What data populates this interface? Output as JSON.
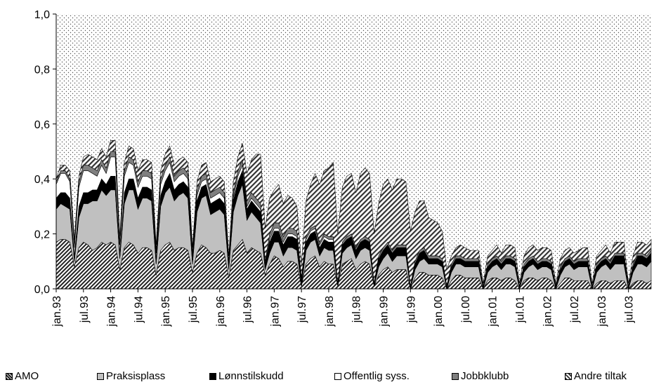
{
  "chart_data": {
    "type": "area",
    "stacked": true,
    "ylim": [
      0,
      1.0
    ],
    "y_ticks": [
      "0,0",
      "0,2",
      "0,4",
      "0,6",
      "0,8",
      "1,0"
    ],
    "y_tick_values": [
      0,
      0.2,
      0.4,
      0.6,
      0.8,
      1.0
    ],
    "x_tick_labels": [
      "jan.93",
      "jul.93",
      "jan.94",
      "jul.94",
      "jan.95",
      "jul.95",
      "jan.96",
      "jul.96",
      "jan.97",
      "jul.97",
      "jan.98",
      "jul.98",
      "jan.99",
      "jul.99",
      "jan.00",
      "jul.00",
      "jan.01",
      "jul.01",
      "jan.02",
      "jul.02",
      "jan.03",
      "jul.03"
    ],
    "x_start": "jan.93",
    "n_months": 132,
    "residual_fill": "dotted",
    "series": [
      {
        "name": "AMO",
        "pattern": "hatch-dense",
        "values": [
          0.17,
          0.18,
          0.18,
          0.17,
          0.08,
          0.15,
          0.17,
          0.16,
          0.14,
          0.15,
          0.17,
          0.16,
          0.17,
          0.16,
          0.07,
          0.15,
          0.17,
          0.16,
          0.13,
          0.15,
          0.15,
          0.14,
          0.05,
          0.14,
          0.16,
          0.17,
          0.14,
          0.15,
          0.15,
          0.14,
          0.06,
          0.13,
          0.16,
          0.15,
          0.13,
          0.13,
          0.14,
          0.13,
          0.04,
          0.14,
          0.16,
          0.18,
          0.13,
          0.15,
          0.14,
          0.13,
          0.05,
          0.09,
          0.12,
          0.11,
          0.08,
          0.1,
          0.1,
          0.09,
          0.01,
          0.09,
          0.11,
          0.12,
          0.08,
          0.1,
          0.09,
          0.09,
          0.01,
          0.09,
          0.1,
          0.11,
          0.07,
          0.09,
          0.1,
          0.09,
          0.01,
          0.05,
          0.07,
          0.08,
          0.06,
          0.07,
          0.07,
          0.07,
          0.0,
          0.04,
          0.06,
          0.06,
          0.05,
          0.05,
          0.05,
          0.04,
          0.0,
          0.03,
          0.05,
          0.05,
          0.04,
          0.04,
          0.04,
          0.04,
          0.0,
          0.03,
          0.04,
          0.04,
          0.03,
          0.04,
          0.04,
          0.03,
          0.0,
          0.03,
          0.04,
          0.04,
          0.03,
          0.04,
          0.04,
          0.03,
          0.0,
          0.02,
          0.04,
          0.04,
          0.03,
          0.03,
          0.03,
          0.03,
          0.0,
          0.02,
          0.03,
          0.03,
          0.02,
          0.03,
          0.03,
          0.03,
          0.0,
          0.02,
          0.03,
          0.03,
          0.02,
          0.03,
          0.03,
          0.03
        ]
      },
      {
        "name": "Praksisplass",
        "pattern": "light-gray",
        "values": [
          0.12,
          0.13,
          0.12,
          0.12,
          0.02,
          0.11,
          0.14,
          0.15,
          0.18,
          0.17,
          0.19,
          0.18,
          0.19,
          0.2,
          0.04,
          0.16,
          0.19,
          0.2,
          0.16,
          0.18,
          0.18,
          0.18,
          0.04,
          0.16,
          0.19,
          0.2,
          0.18,
          0.19,
          0.2,
          0.19,
          0.03,
          0.15,
          0.17,
          0.19,
          0.14,
          0.15,
          0.15,
          0.14,
          0.03,
          0.14,
          0.18,
          0.2,
          0.12,
          0.13,
          0.12,
          0.11,
          0.02,
          0.04,
          0.05,
          0.06,
          0.04,
          0.05,
          0.05,
          0.05,
          0.0,
          0.05,
          0.06,
          0.06,
          0.04,
          0.05,
          0.05,
          0.05,
          0.0,
          0.04,
          0.05,
          0.05,
          0.04,
          0.05,
          0.05,
          0.05,
          0.0,
          0.03,
          0.04,
          0.05,
          0.04,
          0.05,
          0.05,
          0.05,
          0.0,
          0.03,
          0.04,
          0.05,
          0.04,
          0.04,
          0.04,
          0.04,
          0.0,
          0.03,
          0.04,
          0.04,
          0.04,
          0.04,
          0.04,
          0.04,
          0.0,
          0.03,
          0.04,
          0.05,
          0.04,
          0.05,
          0.05,
          0.05,
          0.0,
          0.03,
          0.04,
          0.05,
          0.04,
          0.04,
          0.04,
          0.04,
          0.0,
          0.03,
          0.04,
          0.05,
          0.04,
          0.05,
          0.05,
          0.05,
          0.0,
          0.04,
          0.05,
          0.06,
          0.05,
          0.06,
          0.06,
          0.06,
          0.0,
          0.04,
          0.06,
          0.06,
          0.06,
          0.07,
          0.08,
          0.08
        ]
      },
      {
        "name": "Lønnstilskudd",
        "pattern": "black",
        "values": [
          0.04,
          0.04,
          0.05,
          0.04,
          0.02,
          0.04,
          0.04,
          0.04,
          0.04,
          0.04,
          0.04,
          0.04,
          0.05,
          0.05,
          0.02,
          0.04,
          0.04,
          0.04,
          0.04,
          0.04,
          0.04,
          0.04,
          0.02,
          0.04,
          0.04,
          0.05,
          0.04,
          0.04,
          0.04,
          0.04,
          0.02,
          0.04,
          0.04,
          0.04,
          0.04,
          0.04,
          0.04,
          0.04,
          0.02,
          0.04,
          0.05,
          0.05,
          0.04,
          0.04,
          0.04,
          0.04,
          0.02,
          0.04,
          0.04,
          0.04,
          0.04,
          0.04,
          0.04,
          0.04,
          0.02,
          0.03,
          0.03,
          0.03,
          0.03,
          0.03,
          0.03,
          0.03,
          0.01,
          0.03,
          0.03,
          0.03,
          0.03,
          0.03,
          0.03,
          0.03,
          0.01,
          0.03,
          0.03,
          0.03,
          0.03,
          0.03,
          0.03,
          0.03,
          0.01,
          0.02,
          0.03,
          0.03,
          0.02,
          0.02,
          0.02,
          0.02,
          0.01,
          0.02,
          0.02,
          0.02,
          0.02,
          0.02,
          0.02,
          0.02,
          0.01,
          0.02,
          0.02,
          0.02,
          0.02,
          0.02,
          0.02,
          0.02,
          0.01,
          0.02,
          0.02,
          0.02,
          0.02,
          0.02,
          0.02,
          0.02,
          0.01,
          0.02,
          0.02,
          0.02,
          0.02,
          0.02,
          0.02,
          0.02,
          0.01,
          0.02,
          0.02,
          0.02,
          0.02,
          0.03,
          0.03,
          0.03,
          0.01,
          0.02,
          0.03,
          0.03,
          0.03,
          0.03,
          0.03,
          0.03
        ]
      },
      {
        "name": "Offentlig syss.",
        "pattern": "white",
        "values": [
          0.05,
          0.07,
          0.07,
          0.06,
          0.03,
          0.07,
          0.08,
          0.08,
          0.06,
          0.05,
          0.05,
          0.04,
          0.07,
          0.07,
          0.03,
          0.06,
          0.06,
          0.05,
          0.04,
          0.04,
          0.04,
          0.04,
          0.02,
          0.04,
          0.04,
          0.04,
          0.03,
          0.03,
          0.03,
          0.03,
          0.01,
          0.02,
          0.02,
          0.02,
          0.02,
          0.02,
          0.02,
          0.02,
          0.0,
          0.01,
          0.02,
          0.02,
          0.01,
          0.01,
          0.01,
          0.01,
          0.0,
          0.01,
          0.01,
          0.01,
          0.01,
          0.01,
          0.01,
          0.01,
          0.0,
          0.01,
          0.01,
          0.01,
          0.01,
          0.01,
          0.01,
          0.01,
          0.0,
          0.0,
          0.0,
          0.0,
          0.0,
          0.0,
          0.0,
          0.0,
          0.0,
          0.0,
          0.0,
          0.0,
          0.0,
          0.0,
          0.0,
          0.0,
          0.0,
          0.0,
          0.0,
          0.0,
          0.0,
          0.0,
          0.0,
          0.0,
          0.0,
          0.0,
          0.0,
          0.0,
          0.0,
          0.0,
          0.0,
          0.0,
          0.0,
          0.0,
          0.0,
          0.0,
          0.0,
          0.0,
          0.0,
          0.0,
          0.0,
          0.0,
          0.0,
          0.0,
          0.0,
          0.0,
          0.0,
          0.0,
          0.0,
          0.0,
          0.0,
          0.0,
          0.0,
          0.0,
          0.0,
          0.0,
          0.0,
          0.0,
          0.0,
          0.0,
          0.0,
          0.0,
          0.0,
          0.0,
          0.0,
          0.0,
          0.0,
          0.0,
          0.0,
          0.0,
          0.0,
          0.0
        ]
      },
      {
        "name": "Jobbklubb",
        "pattern": "dark-gray",
        "values": [
          0.01,
          0.01,
          0.01,
          0.01,
          0.01,
          0.02,
          0.02,
          0.02,
          0.02,
          0.02,
          0.02,
          0.02,
          0.02,
          0.02,
          0.01,
          0.02,
          0.02,
          0.02,
          0.02,
          0.02,
          0.02,
          0.02,
          0.01,
          0.02,
          0.02,
          0.02,
          0.02,
          0.02,
          0.02,
          0.02,
          0.01,
          0.02,
          0.02,
          0.02,
          0.02,
          0.02,
          0.02,
          0.02,
          0.01,
          0.02,
          0.02,
          0.02,
          0.02,
          0.02,
          0.02,
          0.02,
          0.01,
          0.02,
          0.02,
          0.02,
          0.02,
          0.02,
          0.02,
          0.02,
          0.01,
          0.01,
          0.01,
          0.01,
          0.01,
          0.01,
          0.01,
          0.01,
          0.0,
          0.01,
          0.01,
          0.01,
          0.01,
          0.01,
          0.01,
          0.01,
          0.0,
          0.01,
          0.01,
          0.01,
          0.01,
          0.01,
          0.01,
          0.01,
          0.0,
          0.01,
          0.01,
          0.01,
          0.01,
          0.01,
          0.01,
          0.01,
          0.0,
          0.01,
          0.01,
          0.01,
          0.01,
          0.01,
          0.01,
          0.01,
          0.0,
          0.01,
          0.01,
          0.01,
          0.01,
          0.01,
          0.01,
          0.01,
          0.0,
          0.01,
          0.01,
          0.01,
          0.01,
          0.01,
          0.01,
          0.01,
          0.0,
          0.01,
          0.01,
          0.01,
          0.01,
          0.01,
          0.01,
          0.01,
          0.0,
          0.01,
          0.01,
          0.01,
          0.01,
          0.01,
          0.01,
          0.01,
          0.0,
          0.01,
          0.01,
          0.01,
          0.01,
          0.01,
          0.01,
          0.01
        ]
      },
      {
        "name": "Andre tiltak",
        "pattern": "hatch-sparse",
        "values": [
          0.01,
          0.02,
          0.02,
          0.03,
          0.02,
          0.02,
          0.03,
          0.04,
          0.04,
          0.04,
          0.04,
          0.04,
          0.04,
          0.04,
          0.02,
          0.03,
          0.04,
          0.04,
          0.04,
          0.04,
          0.04,
          0.04,
          0.02,
          0.03,
          0.04,
          0.04,
          0.04,
          0.04,
          0.04,
          0.04,
          0.02,
          0.03,
          0.04,
          0.04,
          0.04,
          0.04,
          0.04,
          0.04,
          0.02,
          0.04,
          0.05,
          0.06,
          0.1,
          0.12,
          0.16,
          0.18,
          0.12,
          0.13,
          0.12,
          0.14,
          0.12,
          0.12,
          0.11,
          0.09,
          0.05,
          0.13,
          0.16,
          0.19,
          0.21,
          0.23,
          0.25,
          0.27,
          0.18,
          0.2,
          0.22,
          0.22,
          0.2,
          0.24,
          0.25,
          0.24,
          0.18,
          0.19,
          0.23,
          0.23,
          0.22,
          0.24,
          0.24,
          0.23,
          0.2,
          0.18,
          0.18,
          0.17,
          0.14,
          0.13,
          0.12,
          0.1,
          0.06,
          0.03,
          0.03,
          0.04,
          0.04,
          0.03,
          0.03,
          0.03,
          0.01,
          0.03,
          0.03,
          0.04,
          0.03,
          0.04,
          0.04,
          0.04,
          0.01,
          0.03,
          0.04,
          0.04,
          0.04,
          0.04,
          0.04,
          0.04,
          0.01,
          0.03,
          0.03,
          0.03,
          0.03,
          0.03,
          0.04,
          0.04,
          0.01,
          0.03,
          0.03,
          0.04,
          0.03,
          0.04,
          0.04,
          0.04,
          0.01,
          0.03,
          0.04,
          0.04,
          0.04,
          0.04,
          0.04,
          0.03
        ]
      }
    ]
  },
  "legend": [
    {
      "label": "AMO",
      "swatch": "hatch-dense"
    },
    {
      "label": "Praksisplass",
      "swatch": "light-gray"
    },
    {
      "label": "Lønnstilskudd",
      "swatch": "black"
    },
    {
      "label": "Offentlig syss.",
      "swatch": "white"
    },
    {
      "label": "Jobbklubb",
      "swatch": "dark-gray"
    },
    {
      "label": "Andre tiltak",
      "swatch": "hatch-sparse"
    }
  ]
}
